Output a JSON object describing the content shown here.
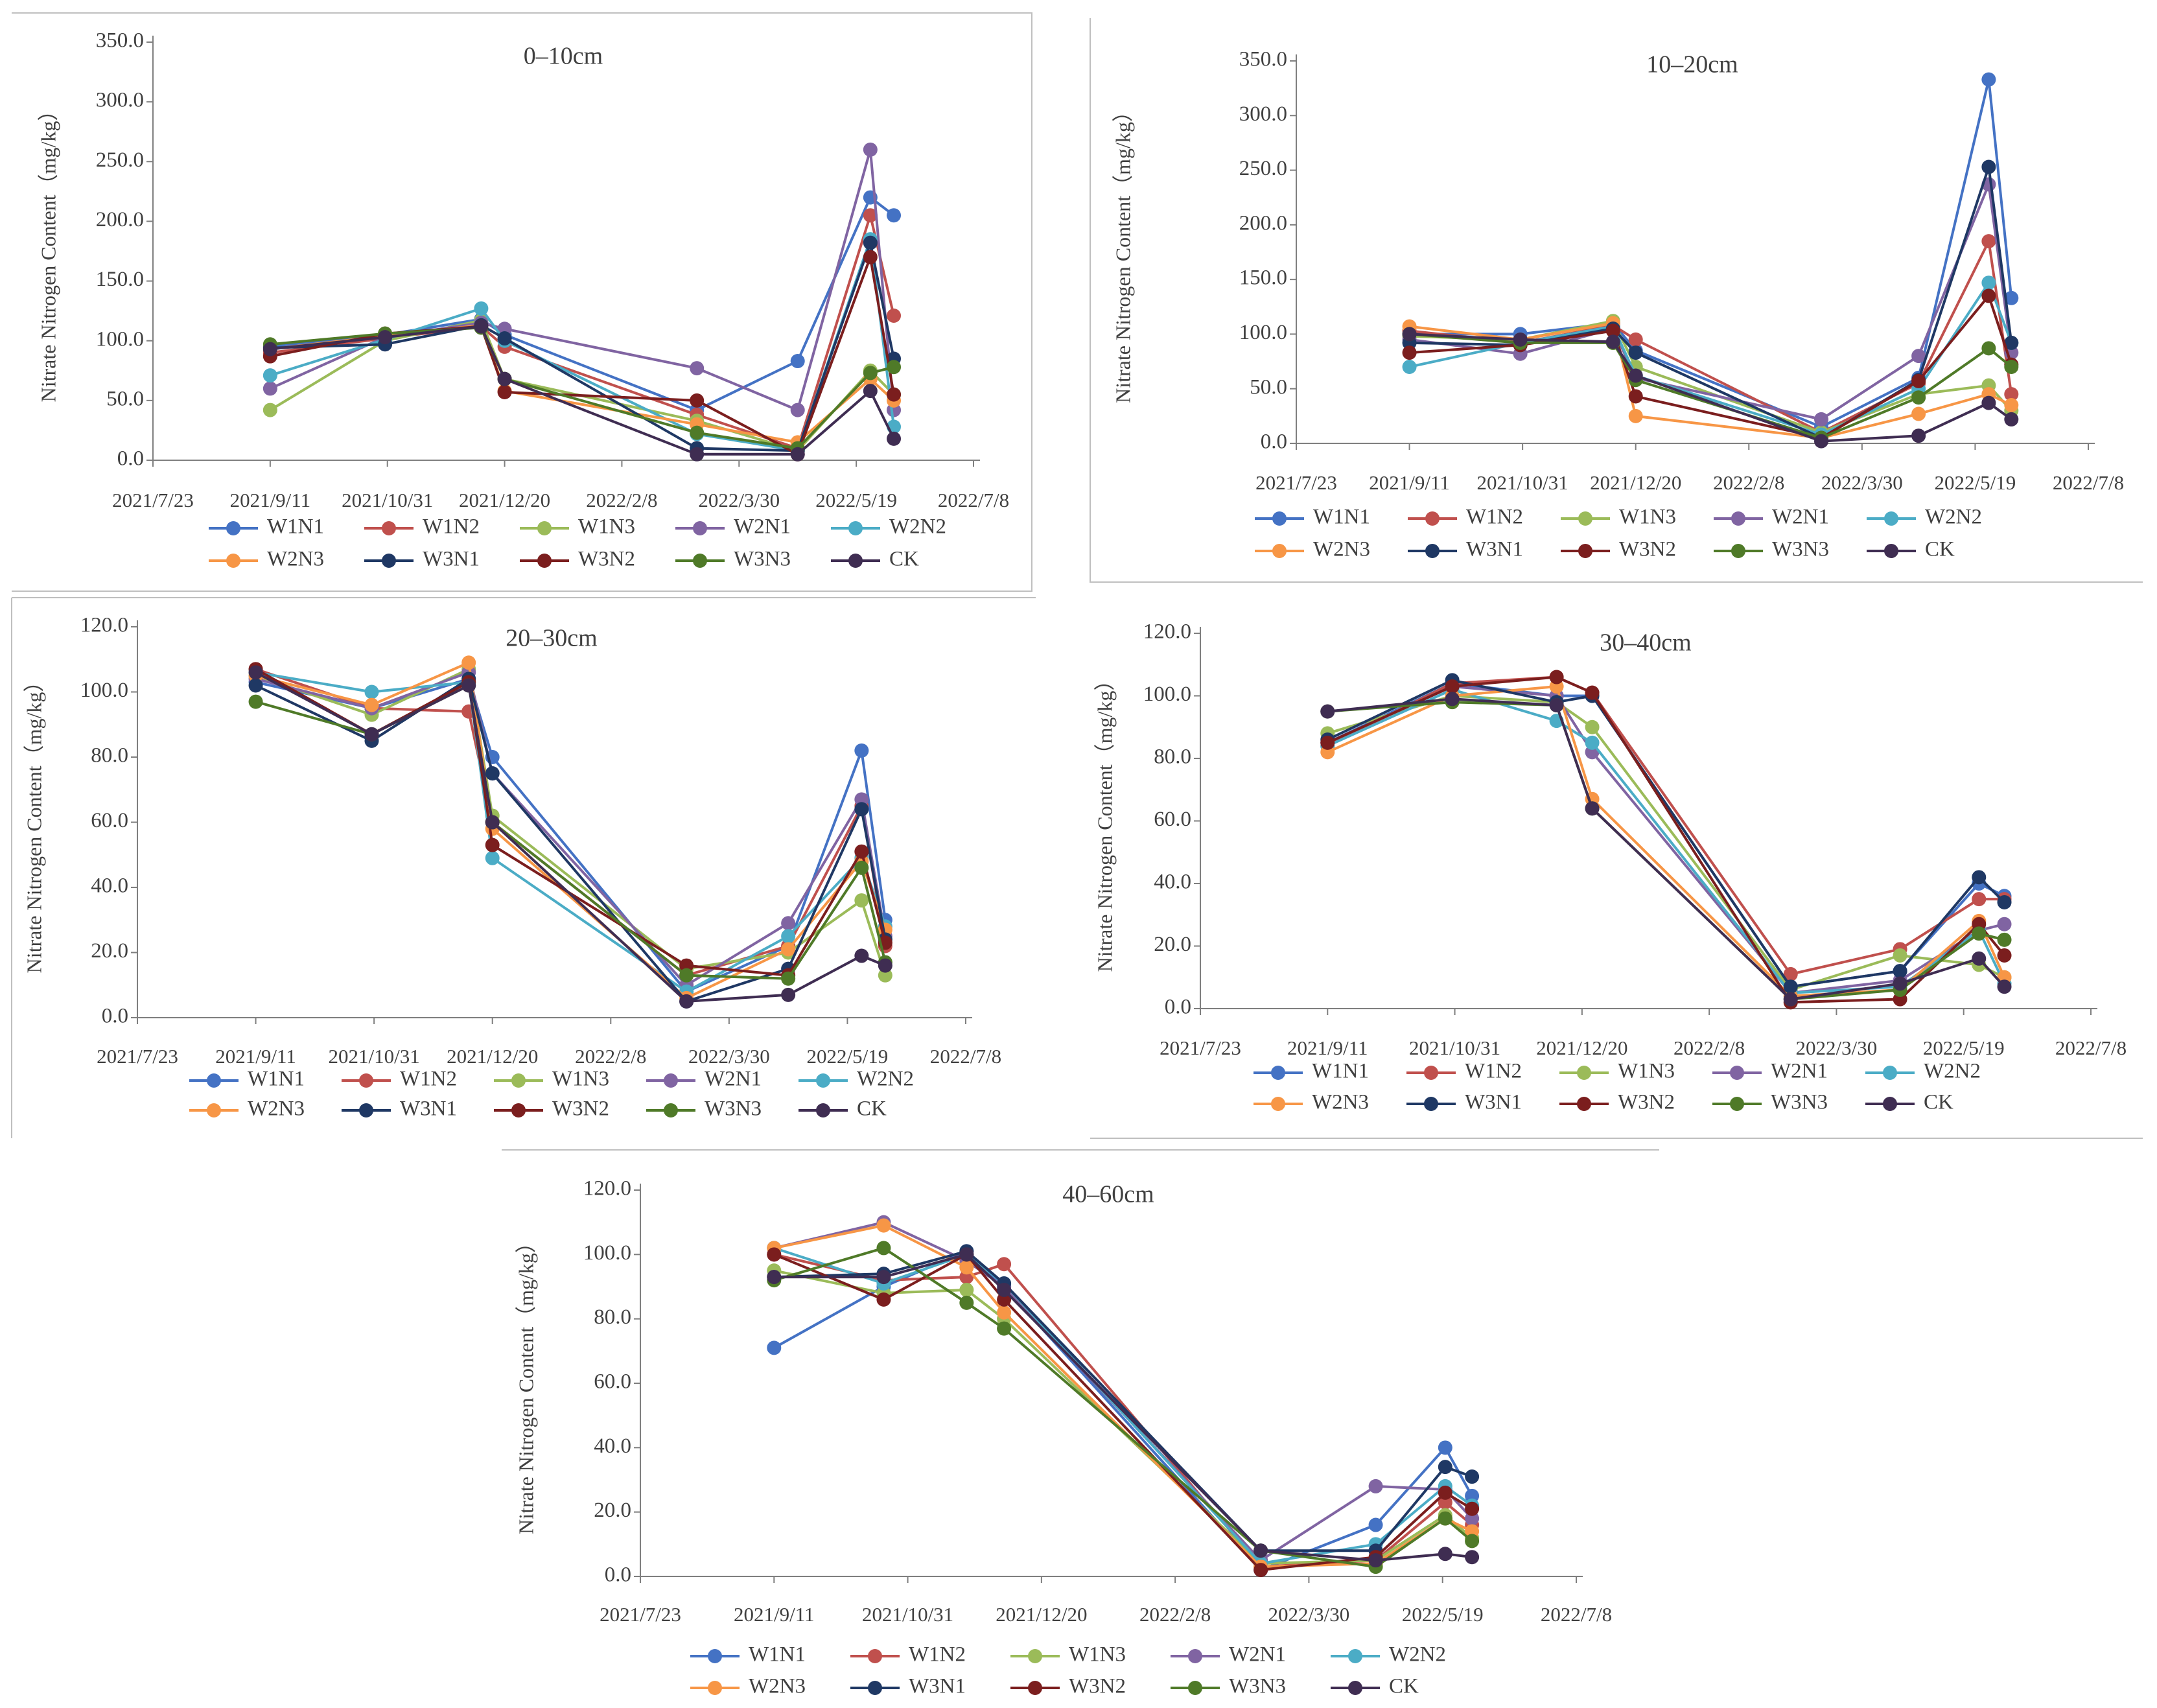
{
  "colors": {
    "W1N1": "#4472C4",
    "W1N2": "#C0504D",
    "W1N3": "#9BBB59",
    "W2N1": "#8064A2",
    "W2N2": "#4BACC6",
    "W2N3": "#F79646",
    "W3N1": "#1F3864",
    "W3N2": "#7B1E1E",
    "W3N3": "#4F7A28",
    "CK": "#3F2D52",
    "axis": "#7f7f7f",
    "frame": "#bfbfbf",
    "text": "#404040"
  },
  "chart_data": [
    {
      "type": "line",
      "title": "0–10cm",
      "ylabel": "Nitrate Nitrogen Content（mg/kg）",
      "xlabel": "",
      "ylim": [
        0,
        350
      ],
      "yticks": [
        "0.0",
        "50.0",
        "100.0",
        "150.0",
        "200.0",
        "250.0",
        "300.0",
        "350.0"
      ],
      "xticks": [
        "2021/7/23",
        "2021/9/11",
        "2021/10/31",
        "2021/12/20",
        "2022/2/8",
        "2022/3/30",
        "2022/5/19",
        "2022/7/8"
      ],
      "xlim_days": [
        0,
        350
      ],
      "x_days": [
        50,
        99,
        140,
        150,
        232,
        275,
        306,
        316
      ],
      "legend": [
        "W1N1",
        "W1N2",
        "W1N3",
        "W2N1",
        "W2N2",
        "W2N3",
        "W3N1",
        "W3N2",
        "W3N3",
        "CK"
      ],
      "series": [
        {
          "name": "W1N1",
          "values": [
            95,
            105,
            118,
            105,
            42,
            83,
            220,
            205
          ]
        },
        {
          "name": "W1N2",
          "values": [
            90,
            102,
            112,
            95,
            38,
            10,
            205,
            121
          ]
        },
        {
          "name": "W1N3",
          "values": [
            42,
            100,
            117,
            68,
            33,
            8,
            75,
            55
          ]
        },
        {
          "name": "W2N1",
          "values": [
            60,
            103,
            115,
            110,
            77,
            42,
            260,
            42
          ]
        },
        {
          "name": "W2N2",
          "values": [
            71,
            101,
            127,
            100,
            22,
            8,
            185,
            28
          ]
        },
        {
          "name": "W2N3",
          "values": [
            93,
            104,
            113,
            58,
            30,
            15,
            68,
            50
          ]
        },
        {
          "name": "W3N1",
          "values": [
            94,
            97,
            113,
            102,
            10,
            8,
            182,
            85
          ]
        },
        {
          "name": "W3N2",
          "values": [
            87,
            106,
            112,
            57,
            50,
            5,
            170,
            55
          ]
        },
        {
          "name": "W3N3",
          "values": [
            97,
            106,
            111,
            68,
            23,
            10,
            73,
            78
          ]
        },
        {
          "name": "CK",
          "values": [
            93,
            103,
            112,
            68,
            5,
            5,
            58,
            18
          ]
        }
      ]
    },
    {
      "type": "line",
      "title": "10–20cm",
      "ylabel": "Nitrate Nitrogen Content（mg/kg）",
      "xlabel": "",
      "ylim": [
        0,
        350
      ],
      "yticks": [
        "0.0",
        "50.0",
        "100.0",
        "150.0",
        "200.0",
        "250.0",
        "300.0",
        "350.0"
      ],
      "xticks": [
        "2021/7/23",
        "2021/9/11",
        "2021/10/31",
        "2021/12/20",
        "2022/2/8",
        "2022/3/30",
        "2022/5/19",
        "2022/7/8"
      ],
      "xlim_days": [
        0,
        350
      ],
      "x_days": [
        50,
        99,
        140,
        150,
        232,
        275,
        306,
        316
      ],
      "legend": [
        "W1N1",
        "W1N2",
        "W1N3",
        "W2N1",
        "W2N2",
        "W2N3",
        "W3N1",
        "W3N2",
        "W3N3",
        "CK"
      ],
      "series": [
        {
          "name": "W1N1",
          "values": [
            100,
            100,
            110,
            85,
            15,
            60,
            333,
            133
          ]
        },
        {
          "name": "W1N2",
          "values": [
            103,
            92,
            108,
            95,
            10,
            55,
            185,
            45
          ]
        },
        {
          "name": "W1N3",
          "values": [
            98,
            95,
            112,
            70,
            10,
            45,
            53,
            30
          ]
        },
        {
          "name": "W2N1",
          "values": [
            95,
            82,
            105,
            60,
            22,
            80,
            237,
            83
          ]
        },
        {
          "name": "W2N2",
          "values": [
            70,
            92,
            107,
            62,
            8,
            50,
            147,
            92
          ]
        },
        {
          "name": "W2N3",
          "values": [
            107,
            95,
            110,
            25,
            5,
            27,
            45,
            35
          ]
        },
        {
          "name": "W3N1",
          "values": [
            92,
            90,
            105,
            83,
            5,
            58,
            253,
            92
          ]
        },
        {
          "name": "W3N2",
          "values": [
            83,
            90,
            103,
            43,
            5,
            57,
            135,
            72
          ]
        },
        {
          "name": "W3N3",
          "values": [
            100,
            92,
            92,
            58,
            5,
            42,
            87,
            70
          ]
        },
        {
          "name": "CK",
          "values": [
            100,
            95,
            93,
            62,
            2,
            7,
            37,
            22
          ]
        }
      ]
    },
    {
      "type": "line",
      "title": "20–30cm",
      "ylabel": "Nitrate Nitrogen Content（mg/kg）",
      "xlabel": "",
      "ylim": [
        0,
        120
      ],
      "yticks": [
        "0.0",
        "20.0",
        "40.0",
        "60.0",
        "80.0",
        "100.0",
        "120.0"
      ],
      "xticks": [
        "2021/7/23",
        "2021/9/11",
        "2021/10/31",
        "2021/12/20",
        "2022/2/8",
        "2022/3/30",
        "2022/5/19",
        "2022/7/8"
      ],
      "xlim_days": [
        0,
        350
      ],
      "x_days": [
        50,
        99,
        140,
        150,
        232,
        275,
        306,
        316
      ],
      "legend": [
        "W1N1",
        "W1N2",
        "W1N3",
        "W2N1",
        "W2N2",
        "W2N3",
        "W3N1",
        "W3N2",
        "W3N3",
        "CK"
      ],
      "series": [
        {
          "name": "W1N1",
          "values": [
            103,
            95,
            104,
            80,
            8,
            22,
            82,
            30
          ]
        },
        {
          "name": "W1N2",
          "values": [
            107,
            95,
            94,
            60,
            13,
            22,
            65,
            22
          ]
        },
        {
          "name": "W1N3",
          "values": [
            105,
            93,
            107,
            62,
            15,
            20,
            36,
            13
          ]
        },
        {
          "name": "W2N1",
          "values": [
            104,
            95,
            106,
            75,
            10,
            29,
            67,
            25
          ]
        },
        {
          "name": "W2N2",
          "values": [
            106,
            100,
            103,
            49,
            8,
            25,
            49,
            28
          ]
        },
        {
          "name": "W2N3",
          "values": [
            105,
            96,
            109,
            58,
            6,
            21,
            48,
            27
          ]
        },
        {
          "name": "W3N1",
          "values": [
            102,
            85,
            104,
            75,
            5,
            15,
            64,
            24
          ]
        },
        {
          "name": "W3N2",
          "values": [
            107,
            87,
            103,
            53,
            16,
            13,
            51,
            23
          ]
        },
        {
          "name": "W3N3",
          "values": [
            97,
            87,
            102,
            60,
            13,
            12,
            46,
            17
          ]
        },
        {
          "name": "CK",
          "values": [
            106,
            87,
            102,
            60,
            5,
            7,
            19,
            16
          ]
        }
      ]
    },
    {
      "type": "line",
      "title": "30–40cm",
      "ylabel": "Nitrate Nitrogen Content（mg/kg）",
      "xlabel": "",
      "ylim": [
        0,
        120
      ],
      "yticks": [
        "0.0",
        "20.0",
        "40.0",
        "60.0",
        "80.0",
        "100.0",
        "120.0"
      ],
      "xticks": [
        "2021/7/23",
        "2021/9/11",
        "2021/10/31",
        "2021/12/20",
        "2022/2/8",
        "2022/3/30",
        "2022/5/19",
        "2022/7/8"
      ],
      "xlim_days": [
        0,
        350
      ],
      "x_days": [
        50,
        99,
        140,
        154,
        232,
        275,
        306,
        316
      ],
      "legend": [
        "W1N1",
        "W1N2",
        "W1N3",
        "W2N1",
        "W2N2",
        "W2N3",
        "W3N1",
        "W3N2",
        "W3N3",
        "CK"
      ],
      "series": [
        {
          "name": "W1N1",
          "values": [
            85,
            104,
            100,
            100,
            7,
            12,
            40,
            36
          ]
        },
        {
          "name": "W1N2",
          "values": [
            84,
            104,
            106,
            101,
            11,
            19,
            35,
            35
          ]
        },
        {
          "name": "W1N3",
          "values": [
            88,
            100,
            98,
            90,
            6,
            17,
            14,
            10
          ]
        },
        {
          "name": "W2N1",
          "values": [
            85,
            103,
            100,
            82,
            5,
            9,
            25,
            27
          ]
        },
        {
          "name": "W2N2",
          "values": [
            84,
            102,
            92,
            85,
            5,
            7,
            25,
            8
          ]
        },
        {
          "name": "W2N3",
          "values": [
            82,
            100,
            103,
            67,
            4,
            6,
            28,
            10
          ]
        },
        {
          "name": "W3N1",
          "values": [
            86,
            105,
            98,
            100,
            7,
            12,
            42,
            34
          ]
        },
        {
          "name": "W3N2",
          "values": [
            85,
            103,
            106,
            101,
            2,
            3,
            27,
            17
          ]
        },
        {
          "name": "W3N3",
          "values": [
            95,
            98,
            97,
            64,
            3,
            6,
            24,
            22
          ]
        },
        {
          "name": "CK",
          "values": [
            95,
            99,
            97,
            64,
            3,
            8,
            16,
            7
          ]
        }
      ]
    },
    {
      "type": "line",
      "title": "40–60cm",
      "ylabel": "Nitrate Nitrogen Content（mg/kg）",
      "xlabel": "",
      "ylim": [
        0,
        120
      ],
      "yticks": [
        "0.0",
        "20.0",
        "40.0",
        "60.0",
        "80.0",
        "100.0",
        "120.0"
      ],
      "xticks": [
        "2021/7/23",
        "2021/9/11",
        "2021/10/31",
        "2021/12/20",
        "2022/2/8",
        "2022/3/30",
        "2022/5/19",
        "2022/7/8"
      ],
      "xlim_days": [
        0,
        350
      ],
      "x_days": [
        50,
        91,
        122,
        136,
        232,
        275,
        301,
        311
      ],
      "legend": [
        "W1N1",
        "W1N2",
        "W1N3",
        "W2N1",
        "W2N2",
        "W2N3",
        "W3N1",
        "W3N2",
        "W3N3",
        "CK"
      ],
      "series": [
        {
          "name": "W1N1",
          "values": [
            71,
            90,
            101,
            90,
            2,
            16,
            40,
            25
          ]
        },
        {
          "name": "W1N2",
          "values": [
            100,
            92,
            93,
            97,
            3,
            5,
            23,
            16
          ]
        },
        {
          "name": "W1N3",
          "values": [
            95,
            88,
            89,
            80,
            4,
            5,
            19,
            12
          ]
        },
        {
          "name": "W2N1",
          "values": [
            102,
            110,
            98,
            90,
            5,
            28,
            27,
            18
          ]
        },
        {
          "name": "W2N2",
          "values": [
            102,
            91,
            100,
            91,
            4,
            10,
            28,
            22
          ]
        },
        {
          "name": "W2N3",
          "values": [
            102,
            109,
            96,
            82,
            3,
            4,
            18,
            14
          ]
        },
        {
          "name": "W3N1",
          "values": [
            93,
            94,
            101,
            91,
            8,
            8,
            34,
            31
          ]
        },
        {
          "name": "W3N2",
          "values": [
            100,
            86,
            100,
            86,
            2,
            6,
            26,
            21
          ]
        },
        {
          "name": "W3N3",
          "values": [
            92,
            102,
            85,
            77,
            8,
            3,
            18,
            11
          ]
        },
        {
          "name": "CK",
          "values": [
            93,
            93,
            100,
            89,
            8,
            5,
            7,
            6
          ]
        }
      ]
    }
  ]
}
